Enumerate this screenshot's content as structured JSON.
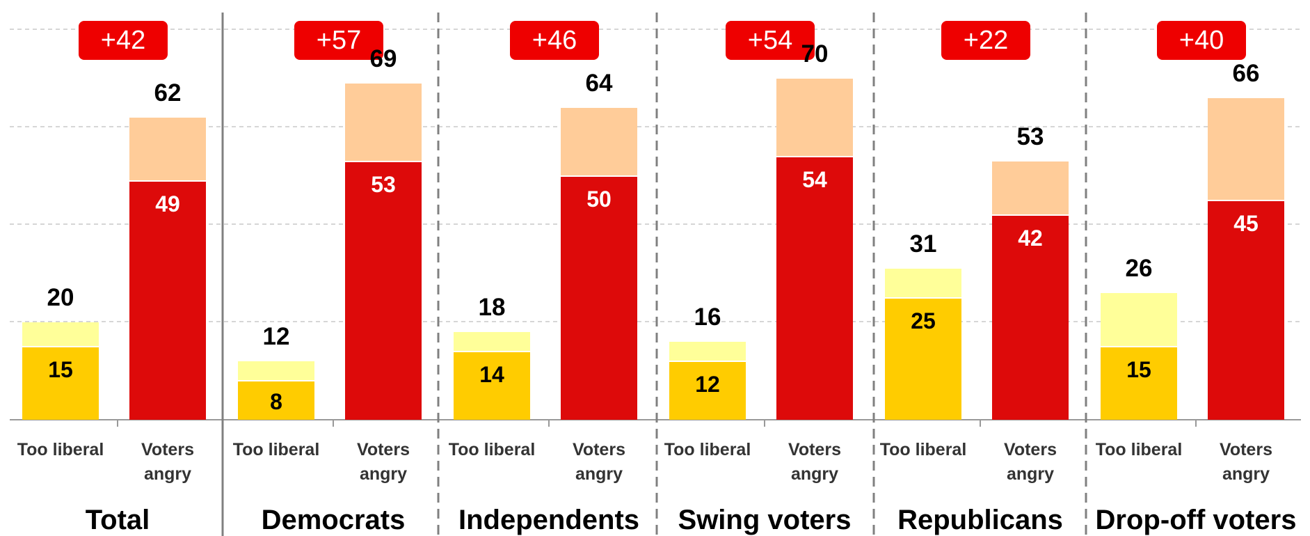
{
  "chart_data": {
    "type": "bar",
    "stacked": true,
    "ylim": [
      0,
      85
    ],
    "grid": true,
    "groups": [
      {
        "name": "Total",
        "gap_label": "+42",
        "bars": [
          {
            "label_line1": "Too liberal",
            "label_line2": "",
            "strong": 15,
            "total": 20,
            "strong_label": "15",
            "total_label": "20"
          },
          {
            "label_line1": "Voters",
            "label_line2": "angry",
            "strong": 49,
            "total": 62,
            "strong_label": "49",
            "total_label": "62"
          }
        ]
      },
      {
        "name": "Democrats",
        "gap_label": "+57",
        "bars": [
          {
            "label_line1": "Too liberal",
            "label_line2": "",
            "strong": 8,
            "total": 12,
            "strong_label": "8",
            "total_label": "12"
          },
          {
            "label_line1": "Voters",
            "label_line2": "angry",
            "strong": 53,
            "total": 69,
            "strong_label": "53",
            "total_label": "69"
          }
        ]
      },
      {
        "name": "Independents",
        "gap_label": "+46",
        "bars": [
          {
            "label_line1": "Too liberal",
            "label_line2": "",
            "strong": 14,
            "total": 18,
            "strong_label": "14",
            "total_label": "18"
          },
          {
            "label_line1": "Voters",
            "label_line2": "angry",
            "strong": 50,
            "total": 64,
            "strong_label": "50",
            "total_label": "64"
          }
        ]
      },
      {
        "name": "Swing voters",
        "gap_label": "+54",
        "bars": [
          {
            "label_line1": "Too liberal",
            "label_line2": "",
            "strong": 12,
            "total": 16,
            "strong_label": "12",
            "total_label": "16"
          },
          {
            "label_line1": "Voters",
            "label_line2": "angry",
            "strong": 54,
            "total": 70,
            "strong_label": "54",
            "total_label": "70"
          }
        ]
      },
      {
        "name": "Republicans",
        "gap_label": "+22",
        "bars": [
          {
            "label_line1": "Too liberal",
            "label_line2": "",
            "strong": 25,
            "total": 31,
            "strong_label": "25",
            "total_label": "31"
          },
          {
            "label_line1": "Voters",
            "label_line2": "angry",
            "strong": 42,
            "total": 53,
            "strong_label": "42",
            "total_label": "53"
          }
        ]
      },
      {
        "name": "Drop-off voters",
        "gap_label": "+40",
        "bars": [
          {
            "label_line1": "Too liberal",
            "label_line2": "",
            "strong": 15,
            "total": 26,
            "strong_label": "15",
            "total_label": "26"
          },
          {
            "label_line1": "Voters",
            "label_line2": "angry",
            "strong": 45,
            "total": 66,
            "strong_label": "45",
            "total_label": "66"
          }
        ]
      }
    ],
    "colors": {
      "too_liberal_strong": "#FFCC00",
      "too_liberal_rest": "#FFFF99",
      "voters_angry_strong": "#DD0A0A",
      "voters_angry_rest": "#FFCC99",
      "badge": "#EE0000",
      "badge_text": "#FFFFFF",
      "grid": "#C8C8C8",
      "separator": "#808080"
    }
  }
}
